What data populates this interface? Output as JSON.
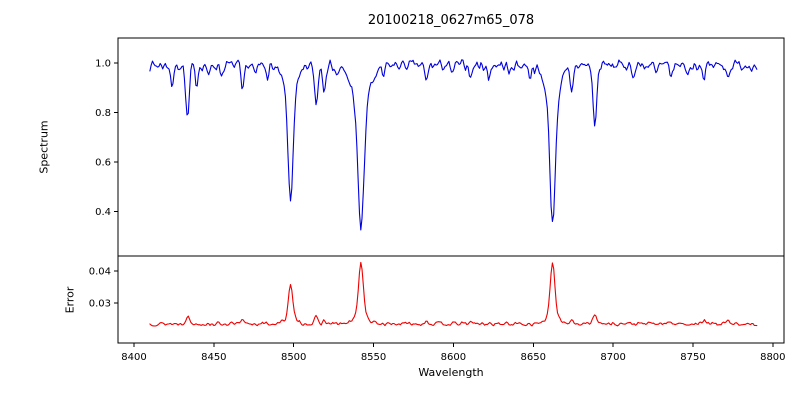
{
  "title": "20100218_0627m65_078",
  "xlabel": "Wavelength",
  "x_axis": {
    "lim": [
      8390,
      8807
    ],
    "ticks": [
      {
        "v": 8400,
        "label": "8400"
      },
      {
        "v": 8450,
        "label": "8450"
      },
      {
        "v": 8500,
        "label": "8500"
      },
      {
        "v": 8550,
        "label": "8550"
      },
      {
        "v": 8600,
        "label": "8600"
      },
      {
        "v": 8650,
        "label": "8650"
      },
      {
        "v": 8700,
        "label": "8700"
      },
      {
        "v": 8750,
        "label": "8750"
      },
      {
        "v": 8800,
        "label": "8800"
      }
    ]
  },
  "chart_data": [
    {
      "id": "spectrum",
      "type": "line",
      "ylabel": "Spectrum",
      "color": "#0000dd",
      "ylim": [
        0.22,
        1.1
      ],
      "yticks": [
        {
          "v": 0.4,
          "label": "0.4"
        },
        {
          "v": 0.6,
          "label": "0.6"
        },
        {
          "v": 0.8,
          "label": "0.8"
        },
        {
          "v": 1.0,
          "label": "1.0"
        }
      ],
      "x_range": [
        8410,
        8790
      ],
      "sample_step": 0.8,
      "seed": 7,
      "base": 0.99,
      "noise": 0.025,
      "features": [
        [
          8424,
          -0.09,
          0.9
        ],
        [
          8433.5,
          -0.22,
          1.1
        ],
        [
          8439,
          -0.08,
          0.9
        ],
        [
          8447,
          -0.05,
          0.8
        ],
        [
          8455,
          -0.04,
          0.8
        ],
        [
          8468,
          -0.12,
          0.9
        ],
        [
          8476,
          -0.05,
          0.8
        ],
        [
          8484,
          -0.04,
          0.8
        ],
        [
          8498,
          -0.43,
          1.5
        ],
        [
          8498,
          -0.12,
          4.5
        ],
        [
          8514.1,
          -0.16,
          1.0
        ],
        [
          8519,
          -0.09,
          0.9
        ],
        [
          8527,
          -0.04,
          0.8
        ],
        [
          8542.1,
          -0.52,
          1.9
        ],
        [
          8542.1,
          -0.14,
          6.0
        ],
        [
          8556,
          -0.04,
          0.8
        ],
        [
          8583,
          -0.07,
          0.9
        ],
        [
          8599,
          -0.04,
          0.8
        ],
        [
          8611,
          -0.05,
          0.8
        ],
        [
          8622,
          -0.06,
          0.8
        ],
        [
          8635,
          -0.04,
          0.8
        ],
        [
          8648,
          -0.04,
          0.8
        ],
        [
          8662.1,
          -0.5,
          1.7
        ],
        [
          8662.1,
          -0.13,
          5.0
        ],
        [
          8674,
          -0.11,
          0.9
        ],
        [
          8688.6,
          -0.24,
          1.2
        ],
        [
          8713,
          -0.05,
          0.8
        ],
        [
          8727,
          -0.04,
          0.8
        ],
        [
          8736,
          -0.06,
          0.8
        ],
        [
          8747,
          -0.04,
          0.8
        ],
        [
          8757,
          -0.06,
          0.8
        ],
        [
          8772,
          -0.05,
          0.8
        ]
      ]
    },
    {
      "id": "error",
      "type": "line",
      "ylabel": "Error",
      "color": "#ee0000",
      "ylim": [
        0.0175,
        0.0447
      ],
      "yticks": [
        {
          "v": 0.03,
          "label": "0.03"
        },
        {
          "v": 0.04,
          "label": "0.04"
        }
      ],
      "x_range": [
        8410,
        8790
      ],
      "sample_step": 0.8,
      "seed": 13,
      "base": 0.0235,
      "noise": 0.0007,
      "features": [
        [
          8433.5,
          0.0025,
          1.1
        ],
        [
          8468,
          0.001,
          0.9
        ],
        [
          8498,
          0.01,
          1.3
        ],
        [
          8498,
          0.002,
          3.5
        ],
        [
          8514.1,
          0.002,
          1.0
        ],
        [
          8519,
          0.001,
          0.9
        ],
        [
          8542.1,
          0.0165,
          1.5
        ],
        [
          8542.1,
          0.0025,
          4.0
        ],
        [
          8583,
          0.001,
          0.9
        ],
        [
          8611,
          0.0008,
          0.8
        ],
        [
          8662.1,
          0.0165,
          1.4
        ],
        [
          8662.1,
          0.0025,
          4.0
        ],
        [
          8674,
          0.0015,
          0.9
        ],
        [
          8688.6,
          0.0035,
          1.1
        ],
        [
          8736,
          0.0008,
          0.8
        ],
        [
          8757,
          0.0012,
          0.9
        ],
        [
          8772,
          0.001,
          0.8
        ]
      ]
    }
  ]
}
